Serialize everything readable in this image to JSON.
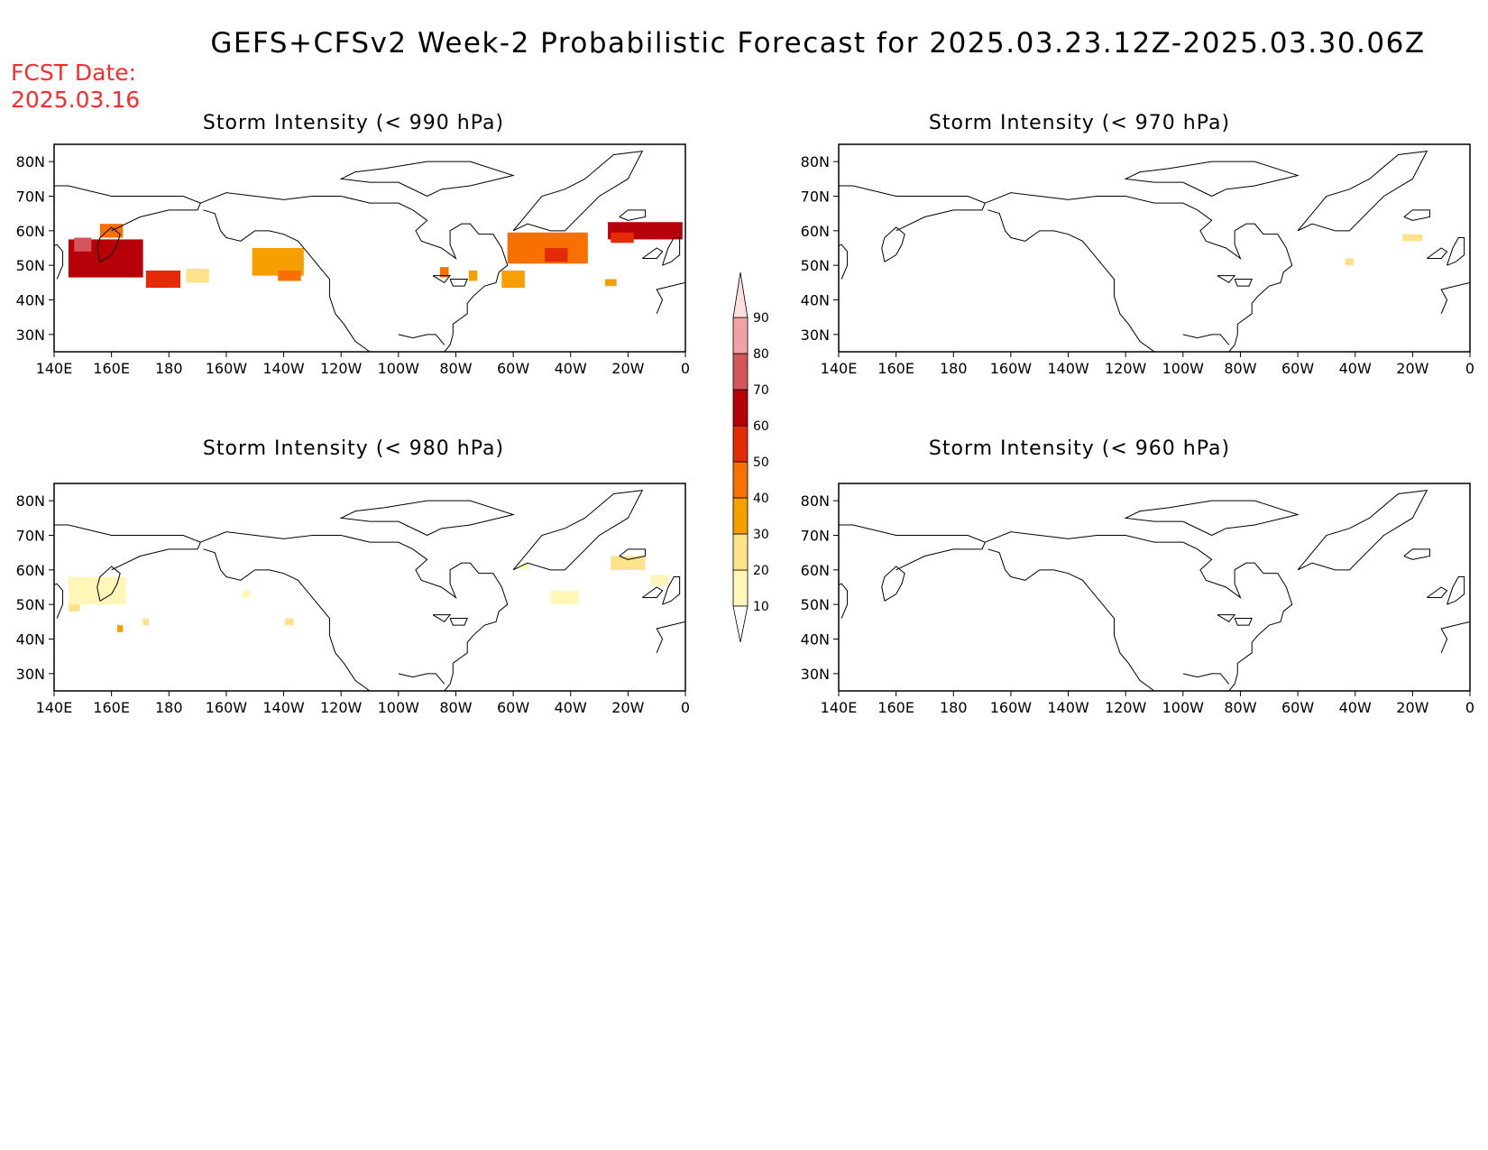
{
  "header": {
    "title": "GEFS+CFSv2 Week-2 Probabilistic Forecast for 2025.03.23.12Z-2025.03.30.06Z",
    "fcst_label": "FCST Date:",
    "fcst_date": "2025.03.16"
  },
  "axes": {
    "lon_ticks": [
      "140E",
      "160E",
      "180",
      "160W",
      "140W",
      "120W",
      "100W",
      "80W",
      "60W",
      "40W",
      "20W",
      "0"
    ],
    "lat_ticks": [
      "80N",
      "70N",
      "60N",
      "50N",
      "40N",
      "30N"
    ]
  },
  "panels": [
    {
      "title": "Storm Intensity (< 990 hPa)",
      "blobs": [
        {
          "lon": 158,
          "lat": 52,
          "w": 26,
          "h": 11,
          "level": 60
        },
        {
          "lon": 150,
          "lat": 56,
          "w": 6,
          "h": 4,
          "level": 70
        },
        {
          "lon": 160,
          "lat": 60,
          "w": 8,
          "h": 4,
          "level": 40
        },
        {
          "lon": 178,
          "lat": 46,
          "w": 12,
          "h": 5,
          "level": 50
        },
        {
          "lon": 190,
          "lat": 47,
          "w": 8,
          "h": 4,
          "level": 20
        },
        {
          "lon": 218,
          "lat": 51,
          "w": 18,
          "h": 8,
          "level": 30
        },
        {
          "lon": 222,
          "lat": 47,
          "w": 8,
          "h": 3,
          "level": 40
        },
        {
          "lon": 276,
          "lat": 48,
          "w": 3,
          "h": 3,
          "level": 40
        },
        {
          "lon": 286,
          "lat": 47,
          "w": 3,
          "h": 3,
          "level": 30
        },
        {
          "lon": 312,
          "lat": 55,
          "w": 28,
          "h": 9,
          "level": 40
        },
        {
          "lon": 300,
          "lat": 46,
          "w": 8,
          "h": 5,
          "level": 30
        },
        {
          "lon": 315,
          "lat": 53,
          "w": 8,
          "h": 4,
          "level": 50
        },
        {
          "lon": 346,
          "lat": 60,
          "w": 26,
          "h": 5,
          "level": 60
        },
        {
          "lon": 338,
          "lat": 58,
          "w": 8,
          "h": 3,
          "level": 50
        },
        {
          "lon": 334,
          "lat": 45,
          "w": 4,
          "h": 2,
          "level": 30
        }
      ]
    },
    {
      "title": "Storm Intensity (< 970 hPa)",
      "blobs": [
        {
          "lon": 340,
          "lat": 58,
          "w": 7,
          "h": 2,
          "level": 20
        },
        {
          "lon": 318,
          "lat": 51,
          "w": 3,
          "h": 2,
          "level": 20
        }
      ]
    },
    {
      "title": "Storm Intensity (< 980 hPa)",
      "blobs": [
        {
          "lon": 155,
          "lat": 54,
          "w": 20,
          "h": 8,
          "level": 10
        },
        {
          "lon": 147,
          "lat": 49,
          "w": 4,
          "h": 2,
          "level": 20
        },
        {
          "lon": 163,
          "lat": 43,
          "w": 2,
          "h": 2,
          "level": 30
        },
        {
          "lon": 172,
          "lat": 45,
          "w": 2,
          "h": 2,
          "level": 20
        },
        {
          "lon": 207,
          "lat": 53,
          "w": 3,
          "h": 2,
          "level": 10
        },
        {
          "lon": 222,
          "lat": 45,
          "w": 3,
          "h": 2,
          "level": 20
        },
        {
          "lon": 304,
          "lat": 61,
          "w": 3,
          "h": 2,
          "level": 10
        },
        {
          "lon": 318,
          "lat": 52,
          "w": 10,
          "h": 4,
          "level": 10
        },
        {
          "lon": 340,
          "lat": 62,
          "w": 12,
          "h": 4,
          "level": 20
        },
        {
          "lon": 351,
          "lat": 57,
          "w": 6,
          "h": 3,
          "level": 10
        }
      ]
    },
    {
      "title": "Storm Intensity (< 960 hPa)",
      "blobs": []
    }
  ],
  "colorbar": {
    "levels": [
      "10",
      "20",
      "30",
      "40",
      "50",
      "60",
      "70",
      "80",
      "90"
    ],
    "colors": [
      "#fff6b8",
      "#fde28a",
      "#f5a000",
      "#f77000",
      "#e52a08",
      "#b80008",
      "#d3555a",
      "#efa1a4",
      "#fcdede"
    ]
  }
}
